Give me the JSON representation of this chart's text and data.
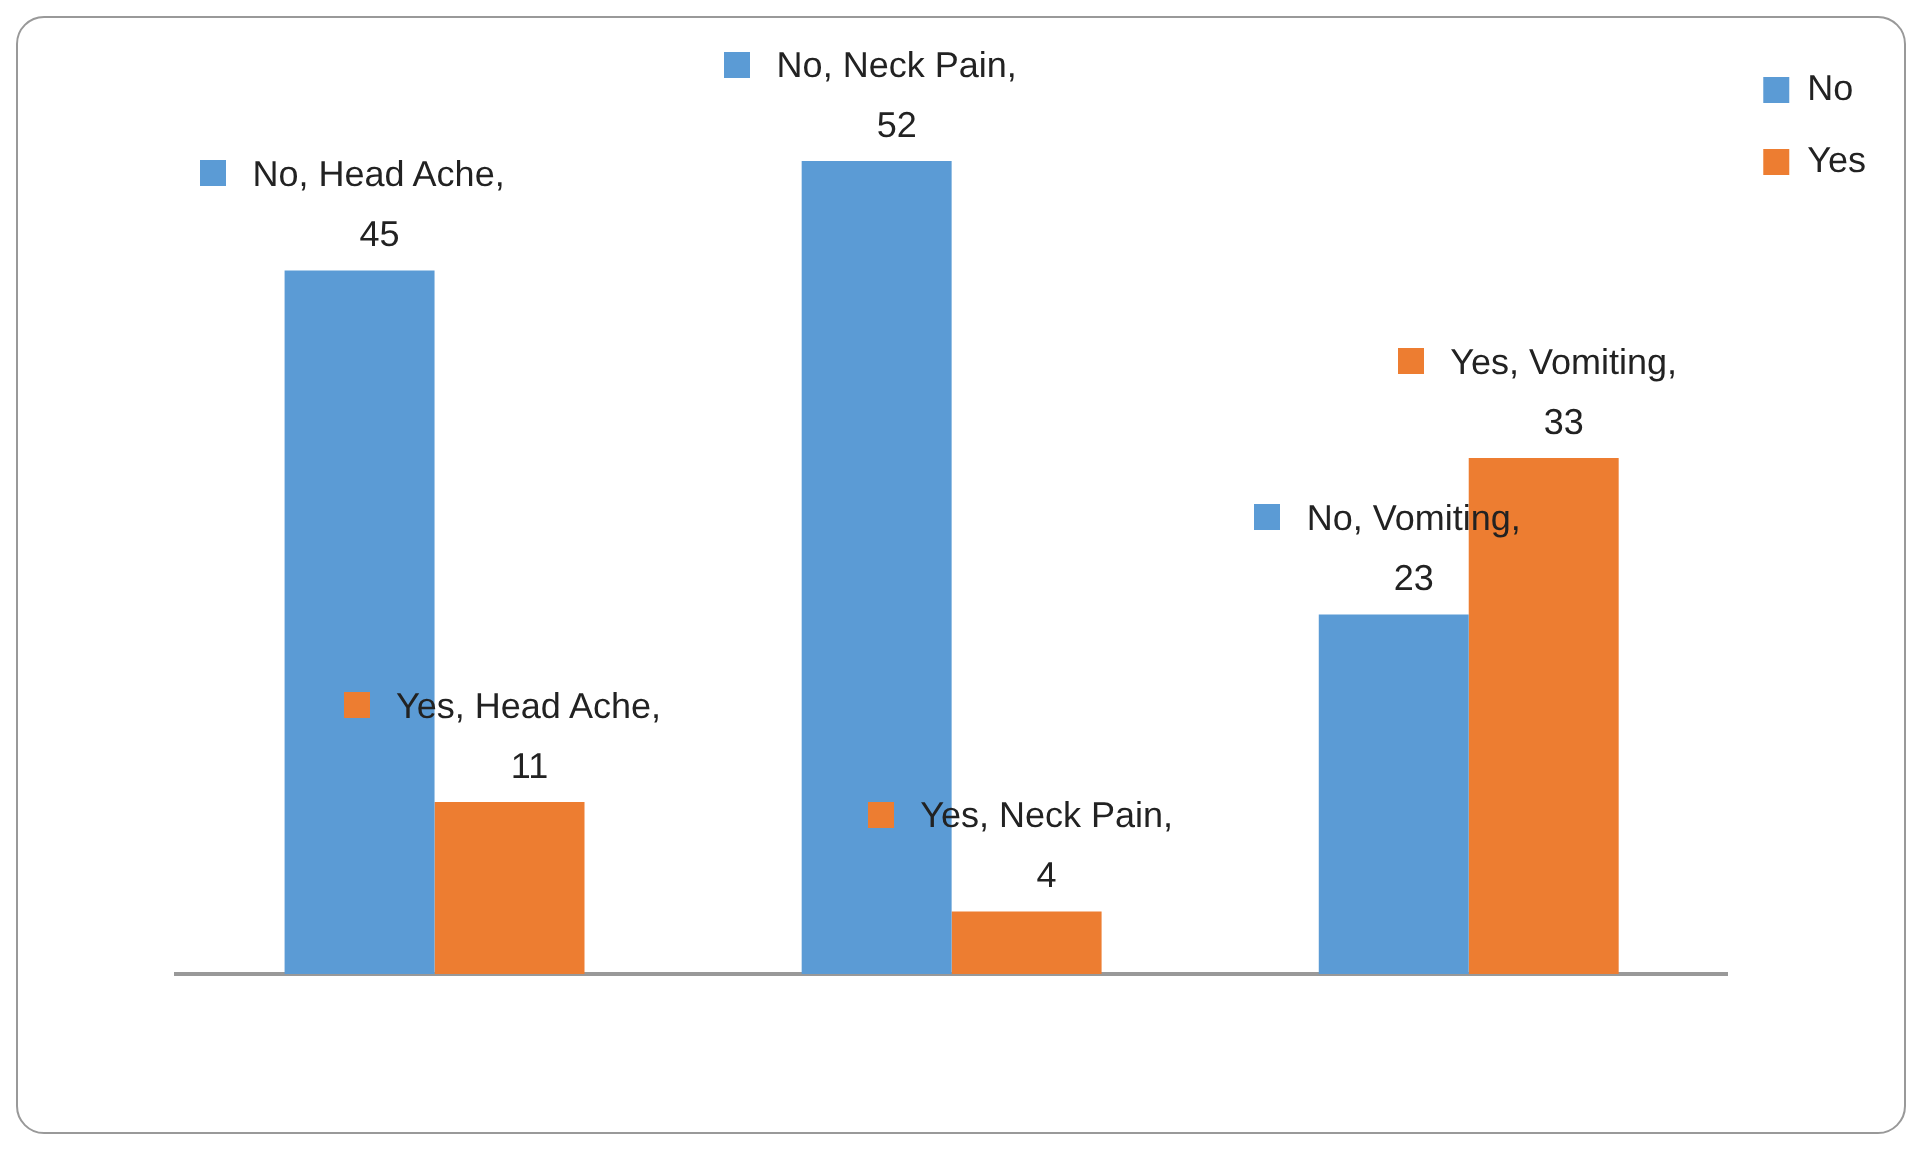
{
  "chart_data": {
    "type": "bar",
    "categories": [
      null,
      null,
      null
    ],
    "series": [
      {
        "name": "No",
        "color": "#5b9bd5",
        "values": [
          45,
          52,
          23
        ],
        "value_labels": [
          "No, Head Ache, 45",
          "No, Neck Pain, 52",
          "No, Vomiting, 23"
        ]
      },
      {
        "name": "Yes",
        "color": "#ed7d31",
        "values": [
          11,
          4,
          33
        ],
        "value_labels": [
          "Yes, Head Ache, 11",
          "Yes, Neck Pain, 4",
          "Yes, Vomiting, 33"
        ]
      }
    ],
    "legend": "top right",
    "grid": false
  }
}
